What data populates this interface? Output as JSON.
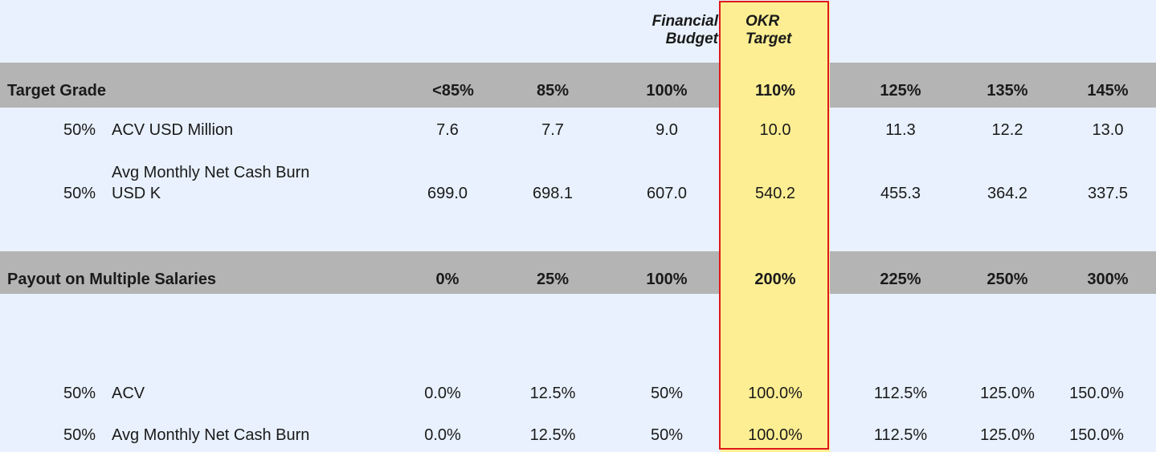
{
  "column_headers": {
    "financial_budget": [
      "Financial",
      "Budget"
    ],
    "okr_target": [
      "OKR",
      "Target"
    ]
  },
  "target_grade": {
    "label": "Target Grade",
    "values": [
      "<85%",
      "85%",
      "100%",
      "110%",
      "125%",
      "135%",
      "145%"
    ]
  },
  "metrics": [
    {
      "weight": "50%",
      "label_lines": [
        "ACV USD Million"
      ],
      "values": [
        "7.6",
        "7.7",
        "9.0",
        "10.0",
        "11.3",
        "12.2",
        "13.0"
      ]
    },
    {
      "weight": "50%",
      "label_lines": [
        "Avg Monthly Net Cash Burn",
        "USD K"
      ],
      "values": [
        "699.0",
        "698.1",
        "607.0",
        "540.2",
        "455.3",
        "364.2",
        "337.5"
      ]
    }
  ],
  "payout": {
    "label": "Payout on Multiple Salaries",
    "values": [
      "0%",
      "25%",
      "100%",
      "200%",
      "225%",
      "250%",
      "300%"
    ]
  },
  "payout_rows": [
    {
      "weight": "50%",
      "label": "ACV",
      "values": [
        "0.0%",
        "12.5%",
        "50%",
        "100.0%",
        "112.5%",
        "125.0%",
        "150.0%"
      ]
    },
    {
      "weight": "50%",
      "label": "Avg Monthly Net Cash Burn",
      "values": [
        "0.0%",
        "12.5%",
        "50%",
        "100.0%",
        "112.5%",
        "125.0%",
        "150.0%"
      ]
    }
  ],
  "colors": {
    "background": "#e8f1fd",
    "band": "#b4b4b4",
    "highlight": "#fdee93",
    "highlight_border": "#e0181a"
  }
}
